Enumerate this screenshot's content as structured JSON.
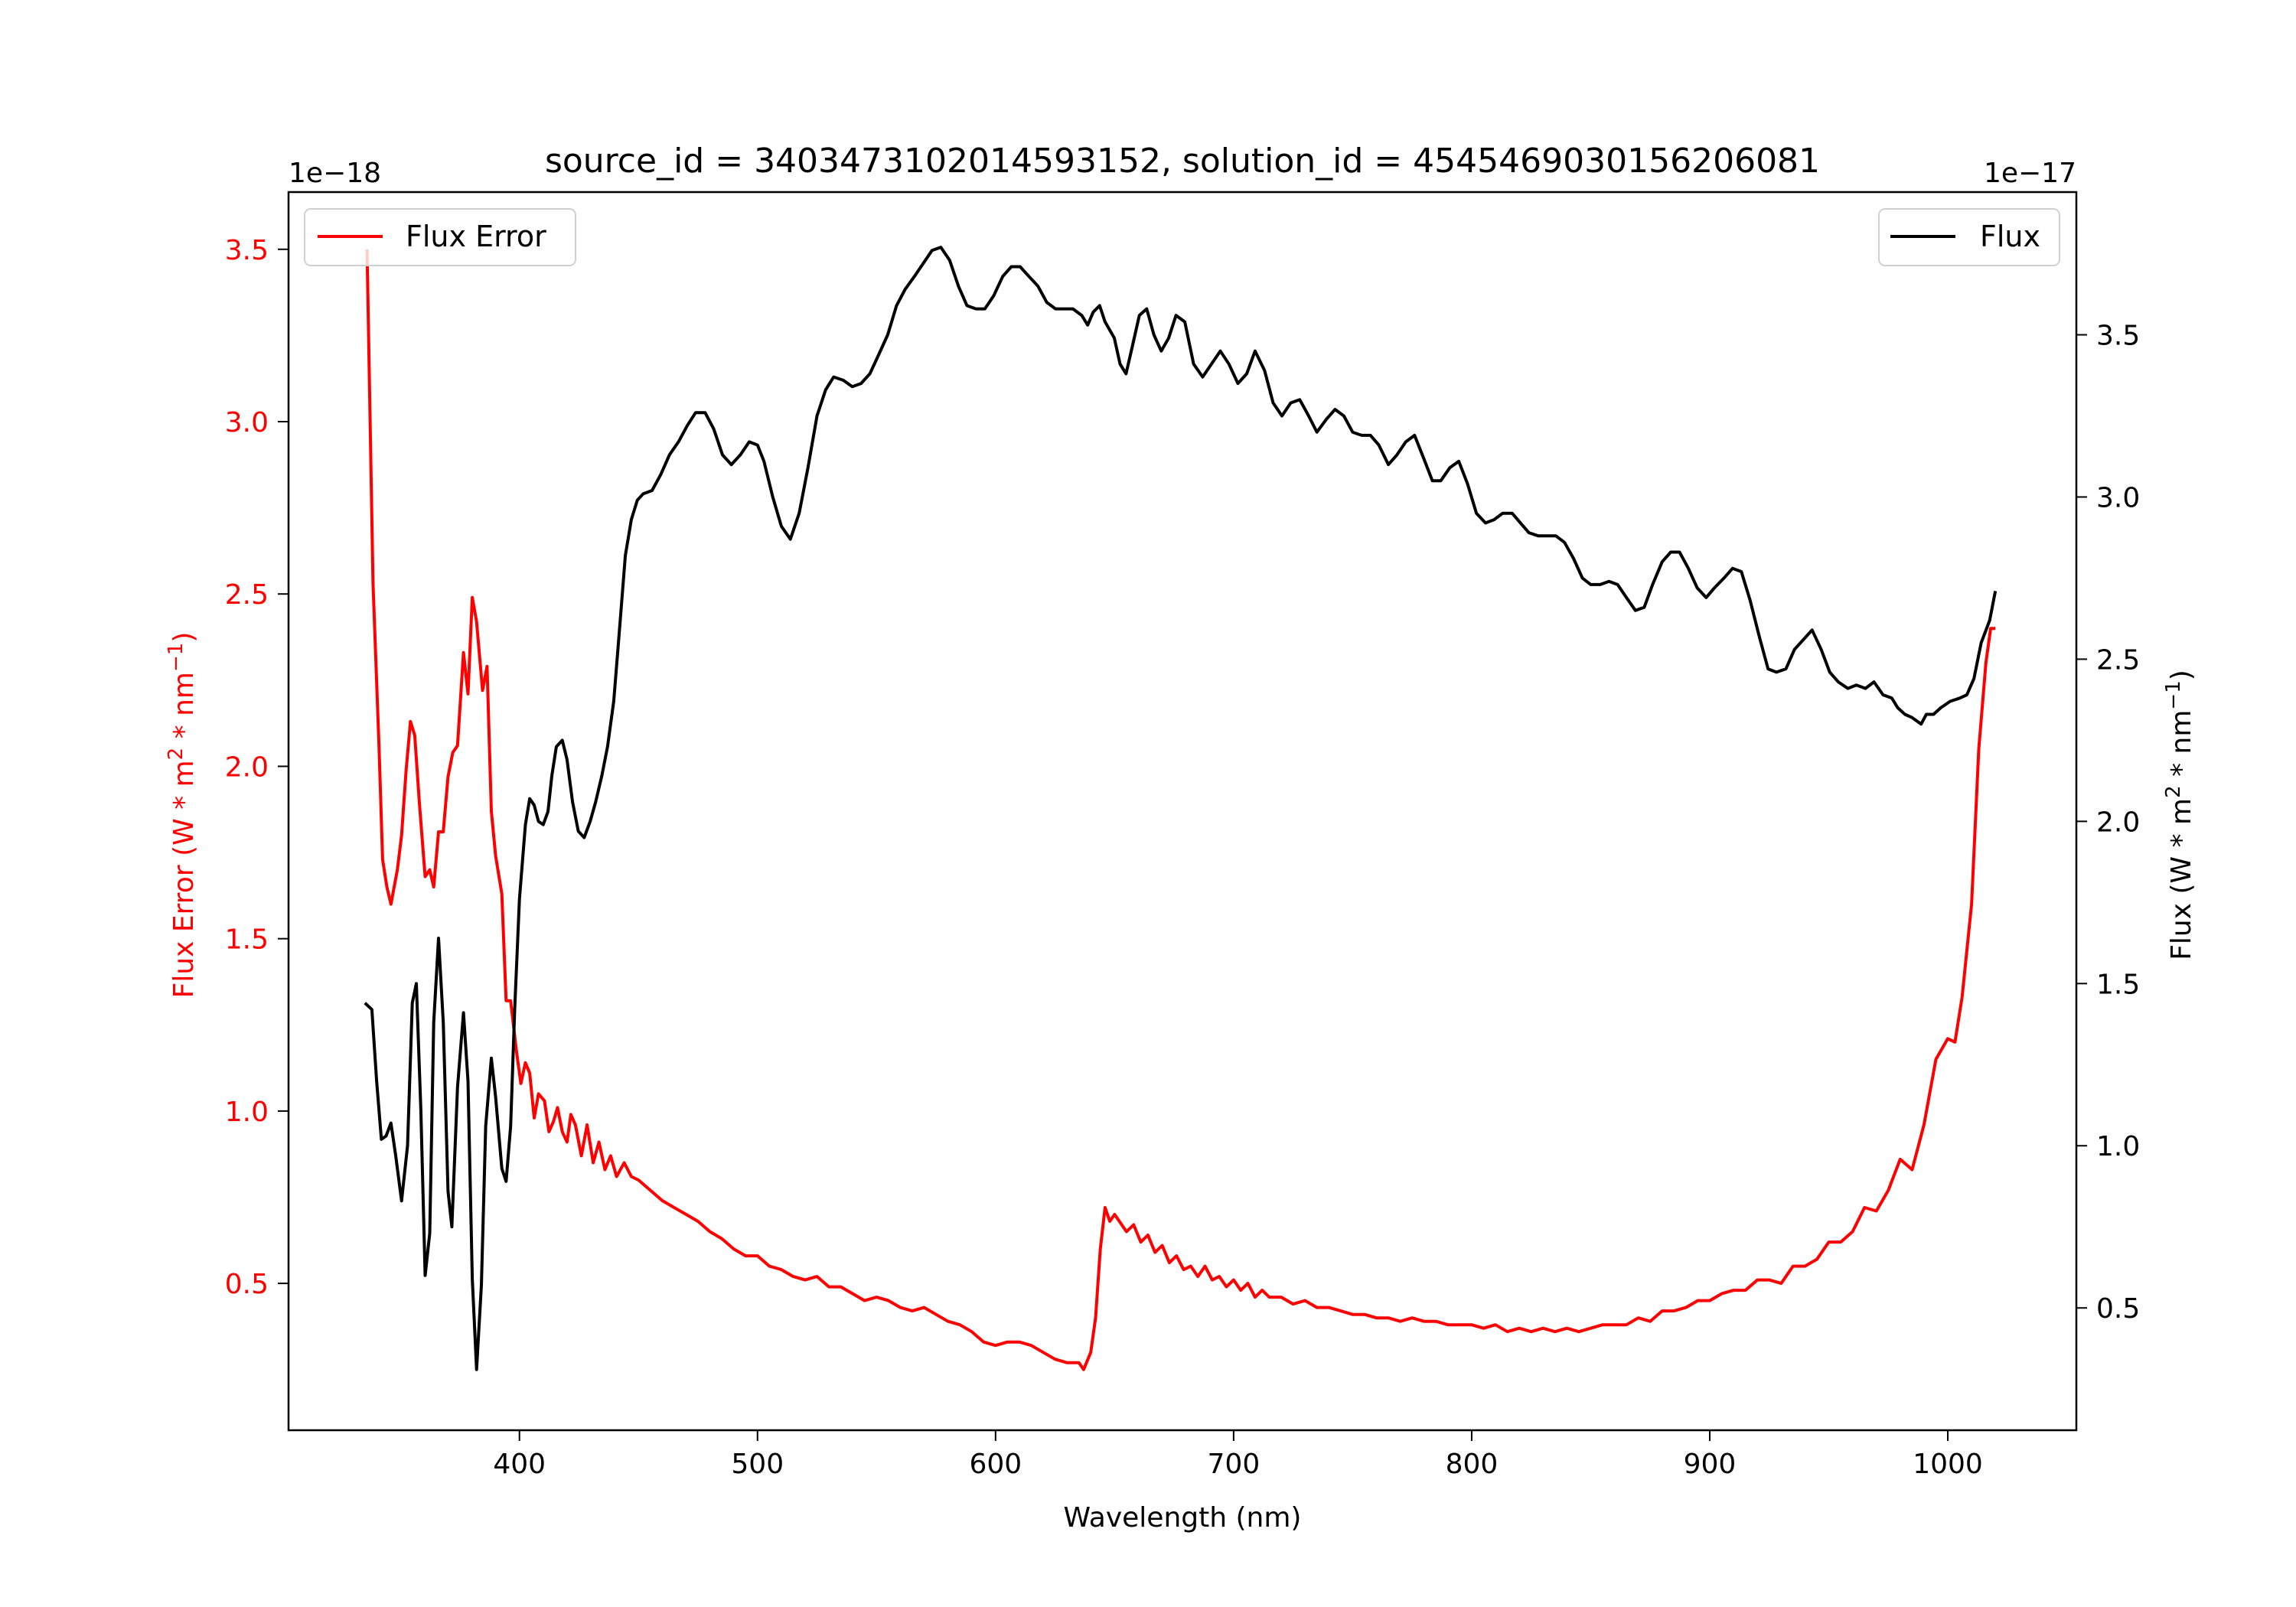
{
  "chart_data": {
    "type": "line",
    "title": "source_id = 3403473102014593152, solution_id = 4545469030156206081",
    "xlabel": "Wavelength (nm)",
    "ylabel_left": "Flux Error (W * m2 * nm−1)",
    "ylabel_left_parts": {
      "a": "Flux Error (W * m",
      "sup1": "2",
      "b": " * nm",
      "sup2": "−1",
      "c": ")"
    },
    "ylabel_right": "Flux (W * m2 * nm−1)",
    "ylabel_right_parts": {
      "a": "Flux (W * m",
      "sup1": "2",
      "b": " * nm",
      "sup2": "−1",
      "c": ")"
    },
    "left_offset": "1e−18",
    "right_offset": "1e−17",
    "xlim": [
      303,
      1054
    ],
    "ylim_left": [
      0.074,
      3.666
    ],
    "ylim_right": [
      0.123,
      3.94
    ],
    "x_ticks": [
      400,
      500,
      600,
      700,
      800,
      900,
      1000
    ],
    "x_tick_labels": [
      "400",
      "500",
      "600",
      "700",
      "800",
      "900",
      "1000"
    ],
    "y_ticks_left": [
      0.5,
      1.0,
      1.5,
      2.0,
      2.5,
      3.0,
      3.5
    ],
    "y_tick_labels_left": [
      "0.5",
      "1.0",
      "1.5",
      "2.0",
      "2.5",
      "3.0",
      "3.5"
    ],
    "y_ticks_right": [
      0.5,
      1.0,
      1.5,
      2.0,
      2.5,
      3.0,
      3.5
    ],
    "y_tick_labels_right": [
      "0.5",
      "1.0",
      "1.5",
      "2.0",
      "2.5",
      "3.0",
      "3.5"
    ],
    "grid": false,
    "legends": [
      {
        "label": "Flux Error",
        "placement": "upper-left"
      },
      {
        "label": "Flux",
        "placement": "upper-right"
      }
    ],
    "colors": {
      "flux_error": "#ff0000",
      "flux": "#000000"
    },
    "series": [
      {
        "name": "Flux Error",
        "axis": "left",
        "color": "#ff0000",
        "x": [
          336,
          338.5,
          341,
          342.5,
          344.3,
          346,
          348.7,
          350.5,
          352.4,
          354.2,
          356,
          358,
          360.4,
          362.3,
          364,
          366,
          368,
          370,
          372,
          374,
          376.5,
          378.4,
          380.2,
          382,
          384.5,
          386.4,
          388.2,
          390,
          392.6,
          394.4,
          396.3,
          398.8,
          400.6,
          402.5,
          404.3,
          406.2,
          408,
          410.5,
          412.4,
          414.3,
          416,
          418,
          420,
          421.6,
          423.5,
          426,
          428.4,
          431,
          433.4,
          435.9,
          438.3,
          440.8,
          444,
          447,
          450,
          455,
          460,
          465,
          470,
          475,
          480,
          485,
          490,
          495,
          500,
          505,
          510,
          515,
          520,
          525,
          530,
          535,
          540,
          545,
          550,
          555,
          560,
          565,
          570,
          575,
          580,
          585,
          590,
          595,
          600,
          605,
          610,
          615,
          620,
          625,
          630,
          635,
          637,
          640,
          642,
          644,
          646,
          648,
          650,
          652,
          655,
          658,
          661,
          664,
          667,
          670,
          673,
          676,
          679,
          682,
          685,
          688,
          691,
          694,
          697,
          700,
          703,
          706,
          709,
          712,
          715,
          720,
          725,
          730,
          735,
          740,
          745,
          750,
          755,
          760,
          765,
          770,
          775,
          780,
          785,
          790,
          795,
          800,
          805,
          810,
          815,
          820,
          825,
          830,
          835,
          840,
          845,
          850,
          855,
          860,
          865,
          870,
          875,
          880,
          885,
          890,
          895,
          900,
          905,
          910,
          915,
          920,
          925,
          930,
          935,
          940,
          945,
          950,
          955,
          960,
          965,
          970,
          975,
          980,
          985,
          990,
          995,
          1000,
          1003,
          1006,
          1010,
          1013,
          1016,
          1018,
          1020
        ],
        "y": [
          3.5,
          2.53,
          2.06,
          1.73,
          1.65,
          1.6,
          1.7,
          1.8,
          1.99,
          2.13,
          2.09,
          1.89,
          1.68,
          1.7,
          1.65,
          1.81,
          1.81,
          1.97,
          2.04,
          2.06,
          2.33,
          2.21,
          2.49,
          2.42,
          2.22,
          2.29,
          1.87,
          1.74,
          1.63,
          1.32,
          1.32,
          1.17,
          1.08,
          1.14,
          1.11,
          0.98,
          1.05,
          1.03,
          0.94,
          0.97,
          1.01,
          0.94,
          0.91,
          0.99,
          0.96,
          0.87,
          0.96,
          0.85,
          0.91,
          0.83,
          0.87,
          0.81,
          0.85,
          0.81,
          0.8,
          0.77,
          0.74,
          0.72,
          0.7,
          0.68,
          0.65,
          0.63,
          0.6,
          0.58,
          0.58,
          0.55,
          0.54,
          0.52,
          0.51,
          0.52,
          0.49,
          0.49,
          0.47,
          0.45,
          0.46,
          0.45,
          0.43,
          0.42,
          0.43,
          0.41,
          0.39,
          0.38,
          0.36,
          0.33,
          0.32,
          0.33,
          0.33,
          0.32,
          0.3,
          0.28,
          0.27,
          0.27,
          0.25,
          0.3,
          0.4,
          0.6,
          0.72,
          0.68,
          0.7,
          0.68,
          0.65,
          0.67,
          0.62,
          0.64,
          0.59,
          0.61,
          0.56,
          0.58,
          0.54,
          0.55,
          0.52,
          0.55,
          0.51,
          0.52,
          0.49,
          0.51,
          0.48,
          0.5,
          0.46,
          0.48,
          0.46,
          0.46,
          0.44,
          0.45,
          0.43,
          0.43,
          0.42,
          0.41,
          0.41,
          0.4,
          0.4,
          0.39,
          0.4,
          0.39,
          0.39,
          0.38,
          0.38,
          0.38,
          0.37,
          0.38,
          0.36,
          0.37,
          0.36,
          0.37,
          0.36,
          0.37,
          0.36,
          0.37,
          0.38,
          0.38,
          0.38,
          0.4,
          0.39,
          0.42,
          0.42,
          0.43,
          0.45,
          0.45,
          0.47,
          0.48,
          0.48,
          0.51,
          0.51,
          0.5,
          0.55,
          0.55,
          0.57,
          0.62,
          0.62,
          0.65,
          0.72,
          0.71,
          0.77,
          0.86,
          0.83,
          0.96,
          1.15,
          1.21,
          1.2,
          1.33,
          1.6,
          2.05,
          2.3,
          2.4,
          2.4
        ]
      },
      {
        "name": "Flux",
        "axis": "right",
        "color": "#000000",
        "x": [
          335.1,
          338,
          340,
          342,
          344,
          346,
          348,
          350.5,
          353,
          355,
          356.7,
          358.6,
          360.4,
          362.3,
          364,
          366,
          368,
          370,
          371.6,
          374,
          376.5,
          378.4,
          380.2,
          382,
          384,
          385.8,
          388.2,
          390,
          392.6,
          394.4,
          396.3,
          398,
          400,
          402.5,
          404.3,
          406.2,
          408,
          410,
          412,
          413.6,
          415.5,
          418,
          420,
          422.3,
          424.7,
          427.2,
          429.7,
          432,
          434.6,
          437,
          439.6,
          442,
          444.5,
          447,
          449.5,
          452,
          455.7,
          459.4,
          463,
          466.8,
          470.5,
          474,
          478,
          481.6,
          485.3,
          489,
          492.8,
          496.5,
          500,
          502.7,
          506.4,
          510,
          513.8,
          517.5,
          521.2,
          525,
          528.6,
          532,
          536,
          539.8,
          543.5,
          547.2,
          551,
          554.7,
          558.4,
          562,
          565.9,
          569.6,
          573.3,
          577,
          580.7,
          584.4,
          588,
          591.8,
          595.5,
          599.2,
          603,
          606.6,
          610.3,
          614,
          617.8,
          621.5,
          625.2,
          628.9,
          632.5,
          636.2,
          638.7,
          641,
          643.7,
          646,
          649.9,
          652.3,
          654.8,
          657.3,
          660.4,
          663.5,
          666.5,
          669.6,
          672.7,
          675.8,
          679.5,
          683.2,
          687,
          690.7,
          694.4,
          698,
          701.8,
          705.5,
          709,
          713,
          716.6,
          720.3,
          724,
          727.8,
          731.5,
          735,
          739,
          742.6,
          746.3,
          750,
          753.8,
          757.5,
          761,
          765,
          768.6,
          772.3,
          776,
          779.8,
          783.5,
          787,
          790.8,
          794.6,
          798.3,
          802,
          805.8,
          809.4,
          813,
          817,
          820.5,
          824,
          828,
          832,
          835.4,
          839,
          842.8,
          846.5,
          850,
          854,
          857.7,
          861.3,
          865,
          868.8,
          872.5,
          876,
          880,
          883.6,
          887.3,
          891,
          894.7,
          898.5,
          902,
          906,
          909.6,
          913.3,
          917,
          920.8,
          924.5,
          928,
          932,
          935.6,
          939.3,
          943,
          946.8,
          950.4,
          954,
          958,
          961.6,
          965.4,
          969,
          972.8,
          976.5,
          979,
          982,
          985,
          988.8,
          991,
          994,
          997,
          1001,
          1005,
          1008,
          1011,
          1014,
          1017.6,
          1020
        ],
        "y": [
          1.44,
          1.42,
          1.2,
          1.02,
          1.03,
          1.07,
          0.97,
          0.83,
          1.0,
          1.44,
          1.5,
          1.11,
          0.6,
          0.73,
          1.38,
          1.64,
          1.38,
          0.86,
          0.75,
          1.18,
          1.41,
          1.2,
          0.59,
          0.31,
          0.57,
          1.06,
          1.27,
          1.15,
          0.93,
          0.89,
          1.06,
          1.42,
          1.76,
          1.99,
          2.07,
          2.05,
          2.0,
          1.99,
          2.03,
          2.14,
          2.23,
          2.25,
          2.19,
          2.06,
          1.97,
          1.95,
          2.0,
          2.06,
          2.14,
          2.23,
          2.37,
          2.59,
          2.82,
          2.93,
          2.99,
          3.01,
          3.02,
          3.07,
          3.13,
          3.17,
          3.22,
          3.26,
          3.26,
          3.21,
          3.13,
          3.1,
          3.13,
          3.17,
          3.16,
          3.11,
          3.0,
          2.91,
          2.87,
          2.95,
          3.09,
          3.25,
          3.33,
          3.37,
          3.36,
          3.34,
          3.35,
          3.38,
          3.44,
          3.5,
          3.59,
          3.64,
          3.68,
          3.72,
          3.76,
          3.77,
          3.73,
          3.65,
          3.59,
          3.58,
          3.58,
          3.62,
          3.68,
          3.71,
          3.71,
          3.68,
          3.65,
          3.6,
          3.58,
          3.58,
          3.58,
          3.56,
          3.53,
          3.57,
          3.59,
          3.54,
          3.49,
          3.41,
          3.38,
          3.46,
          3.56,
          3.58,
          3.5,
          3.45,
          3.49,
          3.56,
          3.54,
          3.41,
          3.37,
          3.41,
          3.45,
          3.41,
          3.35,
          3.38,
          3.45,
          3.39,
          3.29,
          3.25,
          3.29,
          3.3,
          3.25,
          3.2,
          3.24,
          3.27,
          3.25,
          3.2,
          3.19,
          3.19,
          3.16,
          3.1,
          3.13,
          3.17,
          3.19,
          3.12,
          3.05,
          3.05,
          3.09,
          3.11,
          3.04,
          2.95,
          2.92,
          2.93,
          2.95,
          2.95,
          2.92,
          2.89,
          2.88,
          2.88,
          2.88,
          2.86,
          2.81,
          2.75,
          2.73,
          2.73,
          2.74,
          2.73,
          2.69,
          2.65,
          2.66,
          2.73,
          2.8,
          2.83,
          2.83,
          2.78,
          2.72,
          2.69,
          2.72,
          2.75,
          2.78,
          2.77,
          2.68,
          2.57,
          2.47,
          2.46,
          2.47,
          2.53,
          2.56,
          2.59,
          2.53,
          2.46,
          2.43,
          2.41,
          2.42,
          2.41,
          2.43,
          2.39,
          2.38,
          2.35,
          2.33,
          2.32,
          2.3,
          2.33,
          2.33,
          2.35,
          2.37,
          2.38,
          2.39,
          2.44,
          2.55,
          2.62,
          2.71
        ]
      }
    ]
  }
}
